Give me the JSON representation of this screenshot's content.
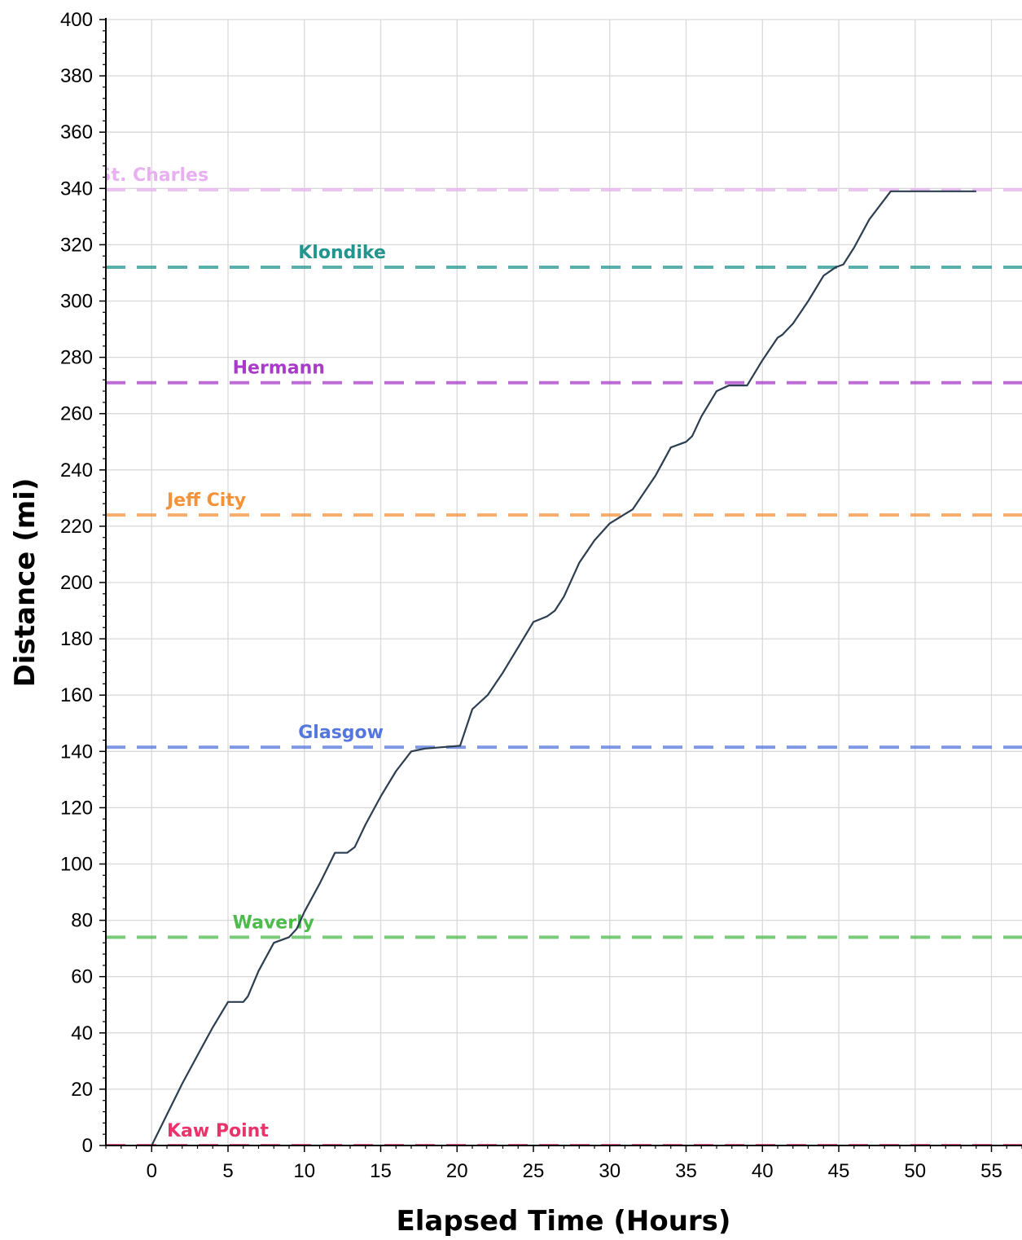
{
  "chart_data": {
    "type": "line",
    "xlabel": "Elapsed Time (Hours)",
    "ylabel": "Distance (mi)",
    "xlim": [
      -3,
      57
    ],
    "ylim": [
      0,
      400
    ],
    "xticks": [
      0,
      5,
      10,
      15,
      20,
      25,
      30,
      35,
      40,
      45,
      50,
      55
    ],
    "yticks": [
      0,
      20,
      40,
      60,
      80,
      100,
      120,
      140,
      160,
      180,
      200,
      220,
      240,
      260,
      280,
      300,
      320,
      340,
      360,
      380,
      400
    ],
    "grid": true,
    "series": [
      {
        "color": "#2c3e50",
        "x": [
          0,
          1,
          2,
          3,
          4,
          5,
          6,
          6.3,
          7,
          8,
          9,
          9.5,
          10,
          11,
          12,
          12.8,
          13.3,
          14,
          15,
          16,
          17,
          17.9,
          20.2,
          21,
          22,
          23,
          24,
          25,
          25.9,
          26.4,
          27,
          28,
          29,
          30,
          30.9,
          31.5,
          32,
          33,
          34,
          35,
          35.4,
          36,
          37,
          37.8,
          39,
          40,
          41,
          41.3,
          42,
          43,
          44,
          44.8,
          45.3,
          46,
          47,
          48.4,
          51,
          54
        ],
        "y": [
          0,
          11,
          22,
          32,
          42,
          51,
          51,
          53,
          62,
          72,
          74,
          77,
          83,
          93,
          104,
          104,
          106,
          114,
          124,
          133,
          140,
          141,
          142,
          155,
          160,
          168,
          177,
          186,
          188,
          190,
          195,
          207,
          215,
          221,
          224,
          226,
          230,
          238,
          248,
          250,
          252,
          259,
          268,
          270,
          270,
          279,
          287,
          288,
          292,
          300,
          309,
          312,
          313,
          319,
          329,
          339,
          339,
          339
        ]
      }
    ],
    "reference_lines": [
      {
        "label": "Kaw Point",
        "y": 0,
        "color": "#e8336b",
        "label_x": 1
      },
      {
        "label": "Waverly",
        "y": 74,
        "color": "#4cbb4c",
        "label_x": 5.3
      },
      {
        "label": "Glasgow",
        "y": 141.5,
        "color": "#5577dd",
        "label_x": 9.6
      },
      {
        "label": "Jeff City",
        "y": 224,
        "color": "#f4923a",
        "label_x": 1
      },
      {
        "label": "Hermann",
        "y": 271,
        "color": "#a83cc8",
        "label_x": 5.3
      },
      {
        "label": "Klondike",
        "y": 312,
        "color": "#22958e",
        "label_x": 9.6
      },
      {
        "label": "St. Charles",
        "y": 339.5,
        "color": "#e8b0f0",
        "label_x": -3.5
      }
    ]
  }
}
